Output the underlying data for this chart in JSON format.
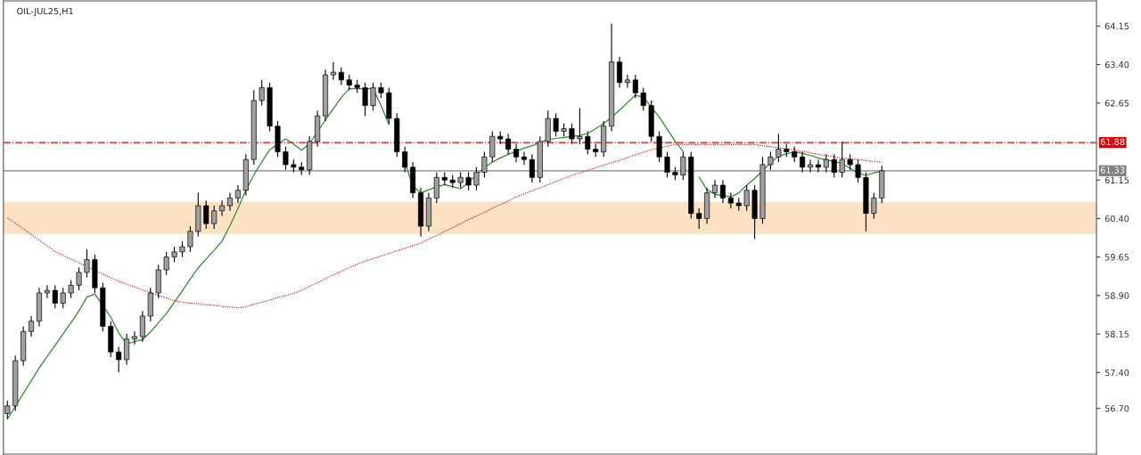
{
  "chart_data": {
    "type": "candlestick",
    "title": "OIL-JUL25,H1",
    "categories": [
      null,
      null,
      null,
      null,
      null,
      null,
      null,
      null,
      null,
      null,
      null,
      null,
      null,
      null,
      null,
      null,
      null,
      null,
      null,
      null,
      null,
      null,
      null,
      null,
      null,
      null,
      null,
      null,
      null,
      null,
      null,
      null,
      null,
      null,
      null,
      null,
      null,
      null,
      null,
      null,
      null,
      null,
      null,
      null,
      null,
      null,
      null,
      null,
      null,
      null,
      null,
      null,
      null,
      null,
      null,
      null,
      null,
      null,
      null,
      null,
      null,
      null,
      null,
      null,
      null,
      null,
      null,
      null,
      null,
      null,
      null,
      null,
      null,
      null,
      null,
      null,
      null,
      null,
      null,
      null,
      null,
      null,
      null,
      null,
      null,
      null,
      null,
      null,
      null,
      null,
      null,
      null,
      null,
      null,
      null,
      null,
      null,
      null,
      null,
      null,
      null,
      null,
      null,
      null,
      null,
      null,
      null,
      null,
      null,
      null,
      null
    ],
    "ohlc": [
      [
        56.6,
        56.85,
        56.5,
        56.75
      ],
      [
        56.75,
        57.73,
        56.65,
        57.63
      ],
      [
        57.63,
        58.3,
        57.53,
        58.2
      ],
      [
        58.2,
        58.5,
        58.1,
        58.4
      ],
      [
        58.4,
        59.05,
        58.3,
        58.95
      ],
      [
        58.95,
        59.1,
        58.85,
        59.0
      ],
      [
        59.0,
        59.1,
        58.65,
        58.75
      ],
      [
        58.75,
        59.05,
        58.65,
        58.95
      ],
      [
        58.95,
        59.2,
        58.85,
        59.1
      ],
      [
        59.1,
        59.45,
        59.0,
        59.35
      ],
      [
        59.35,
        59.8,
        59.25,
        59.6
      ],
      [
        59.6,
        59.7,
        58.95,
        59.05
      ],
      [
        59.05,
        59.15,
        58.2,
        58.3
      ],
      [
        58.3,
        58.4,
        57.7,
        57.8
      ],
      [
        57.8,
        57.9,
        57.4,
        57.65
      ],
      [
        57.65,
        58.15,
        57.55,
        58.05
      ],
      [
        58.05,
        58.2,
        57.95,
        58.1
      ],
      [
        58.1,
        58.6,
        58.0,
        58.5
      ],
      [
        58.5,
        59.05,
        58.4,
        58.95
      ],
      [
        58.95,
        59.5,
        58.85,
        59.4
      ],
      [
        59.4,
        59.75,
        59.3,
        59.65
      ],
      [
        59.65,
        59.85,
        59.55,
        59.75
      ],
      [
        59.75,
        59.95,
        59.65,
        59.85
      ],
      [
        59.85,
        60.25,
        59.75,
        60.15
      ],
      [
        60.15,
        60.9,
        60.05,
        60.65
      ],
      [
        60.65,
        60.75,
        60.2,
        60.3
      ],
      [
        60.3,
        60.65,
        60.2,
        60.55
      ],
      [
        60.55,
        60.75,
        60.45,
        60.65
      ],
      [
        60.65,
        60.9,
        60.55,
        60.8
      ],
      [
        60.8,
        61.05,
        60.7,
        60.95
      ],
      [
        60.95,
        61.65,
        60.85,
        61.55
      ],
      [
        61.55,
        62.9,
        61.45,
        62.7
      ],
      [
        62.7,
        63.1,
        62.6,
        62.95
      ],
      [
        62.95,
        63.05,
        62.1,
        62.2
      ],
      [
        62.2,
        62.3,
        61.6,
        61.7
      ],
      [
        61.7,
        61.8,
        61.35,
        61.45
      ],
      [
        61.45,
        61.55,
        61.3,
        61.4
      ],
      [
        61.4,
        61.5,
        61.25,
        61.35
      ],
      [
        61.35,
        62.0,
        61.25,
        61.9
      ],
      [
        61.9,
        62.5,
        61.8,
        62.4
      ],
      [
        62.4,
        63.3,
        62.3,
        63.2
      ],
      [
        63.2,
        63.45,
        63.1,
        63.25
      ],
      [
        63.25,
        63.35,
        63.0,
        63.1
      ],
      [
        63.1,
        63.2,
        62.9,
        63.0
      ],
      [
        63.0,
        63.1,
        62.85,
        62.95
      ],
      [
        62.95,
        63.05,
        62.4,
        62.6
      ],
      [
        62.6,
        63.05,
        62.5,
        62.95
      ],
      [
        62.95,
        63.05,
        62.75,
        62.85
      ],
      [
        62.85,
        62.95,
        62.25,
        62.35
      ],
      [
        62.35,
        62.45,
        61.6,
        61.7
      ],
      [
        61.7,
        61.8,
        61.3,
        61.4
      ],
      [
        61.4,
        61.5,
        60.8,
        60.9
      ],
      [
        60.9,
        61.0,
        60.05,
        60.25
      ],
      [
        60.25,
        60.9,
        60.15,
        60.8
      ],
      [
        60.8,
        61.3,
        60.7,
        61.2
      ],
      [
        61.2,
        61.3,
        61.05,
        61.15
      ],
      [
        61.15,
        61.25,
        61.0,
        61.1
      ],
      [
        61.1,
        61.3,
        61.0,
        61.2
      ],
      [
        61.2,
        61.3,
        60.95,
        61.05
      ],
      [
        61.05,
        61.4,
        60.95,
        61.3
      ],
      [
        61.3,
        61.7,
        61.2,
        61.6
      ],
      [
        61.6,
        62.1,
        61.5,
        62.0
      ],
      [
        62.0,
        62.1,
        61.85,
        61.95
      ],
      [
        61.95,
        62.05,
        61.65,
        61.75
      ],
      [
        61.75,
        61.85,
        61.5,
        61.6
      ],
      [
        61.6,
        61.7,
        61.45,
        61.55
      ],
      [
        61.55,
        61.65,
        61.1,
        61.2
      ],
      [
        61.2,
        62.0,
        61.1,
        61.9
      ],
      [
        61.9,
        62.5,
        61.8,
        62.35
      ],
      [
        62.35,
        62.45,
        62.0,
        62.1
      ],
      [
        62.1,
        62.25,
        62.0,
        62.15
      ],
      [
        62.15,
        62.25,
        61.85,
        61.95
      ],
      [
        61.95,
        62.55,
        61.85,
        62.0
      ],
      [
        62.0,
        62.1,
        61.65,
        61.75
      ],
      [
        61.75,
        61.85,
        61.6,
        61.7
      ],
      [
        61.7,
        62.3,
        61.6,
        62.2
      ],
      [
        62.2,
        64.2,
        62.1,
        63.45
      ],
      [
        63.45,
        63.55,
        62.95,
        63.05
      ],
      [
        63.05,
        63.2,
        62.95,
        63.1
      ],
      [
        63.1,
        63.2,
        62.75,
        62.85
      ],
      [
        62.85,
        62.95,
        62.5,
        62.6
      ],
      [
        62.6,
        62.7,
        61.9,
        62.0
      ],
      [
        62.0,
        62.1,
        61.5,
        61.6
      ],
      [
        61.6,
        61.7,
        61.2,
        61.3
      ],
      [
        61.3,
        61.4,
        61.15,
        61.25
      ],
      [
        61.25,
        61.7,
        61.15,
        61.6
      ],
      [
        61.6,
        61.7,
        60.4,
        60.5
      ],
      [
        60.5,
        60.6,
        60.2,
        60.4
      ],
      [
        60.4,
        61.0,
        60.3,
        60.9
      ],
      [
        60.9,
        61.15,
        60.8,
        61.05
      ],
      [
        61.05,
        61.15,
        60.7,
        60.8
      ],
      [
        60.8,
        60.9,
        60.6,
        60.7
      ],
      [
        60.7,
        60.8,
        60.55,
        60.65
      ],
      [
        60.65,
        61.05,
        60.55,
        60.95
      ],
      [
        60.95,
        61.05,
        60.0,
        60.4
      ],
      [
        60.4,
        61.6,
        60.3,
        61.45
      ],
      [
        61.45,
        61.7,
        61.35,
        61.6
      ],
      [
        61.6,
        62.05,
        61.5,
        61.75
      ],
      [
        61.75,
        61.85,
        61.6,
        61.7
      ],
      [
        61.7,
        61.8,
        61.5,
        61.6
      ],
      [
        61.6,
        61.7,
        61.3,
        61.4
      ],
      [
        61.4,
        61.55,
        61.3,
        61.45
      ],
      [
        61.45,
        61.55,
        61.3,
        61.4
      ],
      [
        61.4,
        61.65,
        61.3,
        61.55
      ],
      [
        61.55,
        61.65,
        61.2,
        61.3
      ],
      [
        61.3,
        61.9,
        61.2,
        61.55
      ],
      [
        61.55,
        61.65,
        61.35,
        61.45
      ],
      [
        61.45,
        61.55,
        61.1,
        61.2
      ],
      [
        61.2,
        61.3,
        60.15,
        60.5
      ],
      [
        60.5,
        60.9,
        60.4,
        60.8
      ],
      [
        60.8,
        61.43,
        60.7,
        61.33
      ]
    ],
    "colors": [
      "#a0a0a0",
      "#a0a0a0",
      "#a0a0a0",
      "#a0a0a0",
      "#a0a0a0",
      "#a0a0a0",
      "#000000",
      "#a0a0a0",
      "#a0a0a0",
      "#a0a0a0",
      "#a0a0a0",
      "#000000",
      "#000000",
      "#000000",
      "#000000",
      "#a0a0a0",
      "#a0a0a0",
      "#a0a0a0",
      "#a0a0a0",
      "#a0a0a0",
      "#a0a0a0",
      "#a0a0a0",
      "#a0a0a0",
      "#a0a0a0",
      "#a0a0a0",
      "#000000",
      "#a0a0a0",
      "#a0a0a0",
      "#a0a0a0",
      "#a0a0a0",
      "#a0a0a0",
      "#a0a0a0",
      "#a0a0a0",
      "#000000",
      "#000000",
      "#000000",
      "#000000",
      "#000000",
      "#a0a0a0",
      "#a0a0a0",
      "#a0a0a0",
      "#a0a0a0",
      "#000000",
      "#000000",
      "#000000",
      "#000000",
      "#a0a0a0",
      "#000000",
      "#000000",
      "#000000",
      "#000000",
      "#000000",
      "#000000",
      "#a0a0a0",
      "#a0a0a0",
      "#000000",
      "#000000",
      "#a0a0a0",
      "#000000",
      "#a0a0a0",
      "#a0a0a0",
      "#a0a0a0",
      "#000000",
      "#000000",
      "#000000",
      "#000000",
      "#000000",
      "#a0a0a0",
      "#a0a0a0",
      "#000000",
      "#a0a0a0",
      "#000000",
      "#a0a0a0",
      "#000000",
      "#000000",
      "#a0a0a0",
      "#a0a0a0",
      "#000000",
      "#a0a0a0",
      "#000000",
      "#000000",
      "#000000",
      "#000000",
      "#000000",
      "#000000",
      "#a0a0a0",
      "#000000",
      "#000000",
      "#a0a0a0",
      "#a0a0a0",
      "#000000",
      "#000000",
      "#000000",
      "#a0a0a0",
      "#000000",
      "#a0a0a0",
      "#a0a0a0",
      "#a0a0a0",
      "#000000",
      "#000000",
      "#000000",
      "#a0a0a0",
      "#000000",
      "#a0a0a0",
      "#000000",
      "#a0a0a0",
      "#000000",
      "#000000",
      "#000000",
      "#a0a0a0",
      "#a0a0a0"
    ],
    "series": [
      {
        "type": "line",
        "color": "#2e8b2e",
        "line_style": "solid",
        "values": [
          56.49,
          56.74,
          56.99,
          57.24,
          57.49,
          57.71,
          57.93,
          58.15,
          58.37,
          58.6,
          58.87,
          58.93,
          58.71,
          58.48,
          58.17,
          57.96,
          58.0,
          58.04,
          58.19,
          58.37,
          58.55,
          58.77,
          58.99,
          59.22,
          59.44,
          59.61,
          59.78,
          59.96,
          60.26,
          60.6,
          60.95,
          61.25,
          61.5,
          61.74,
          61.85,
          61.95,
          61.85,
          61.73,
          61.86,
          62.09,
          62.32,
          62.54,
          62.76,
          62.93,
          62.93,
          62.93,
          62.93,
          62.6,
          62.23,
          null,
          61.5,
          61.03,
          60.9,
          60.96,
          61.02,
          61.06,
          61.02,
          60.98,
          61.1,
          61.25,
          61.39,
          61.5,
          61.58,
          61.65,
          61.71,
          61.77,
          61.82,
          61.88,
          61.94,
          61.96,
          61.98,
          62.0,
          62.02,
          62.06,
          62.15,
          62.25,
          62.37,
          62.51,
          62.66,
          62.8,
          62.77,
          62.57,
          62.38,
          62.14,
          61.9,
          61.71,
          null,
          61.21,
          60.96,
          60.87,
          60.85,
          60.82,
          60.9,
          61.05,
          61.18,
          61.33,
          61.48,
          61.62,
          61.66,
          61.7,
          61.67,
          61.63,
          61.58,
          61.54,
          61.51,
          61.47,
          61.38,
          61.29,
          61.24,
          61.29,
          61.32
        ]
      },
      {
        "type": "line",
        "color": "#d03030",
        "line_style": "dotted",
        "values": [
          60.41,
          60.31,
          60.2,
          60.09,
          59.98,
          59.87,
          59.76,
          59.68,
          59.61,
          59.54,
          59.46,
          59.39,
          59.32,
          59.25,
          59.18,
          59.12,
          59.07,
          59.01,
          58.96,
          58.9,
          58.85,
          58.8,
          58.77,
          58.75,
          58.74,
          58.72,
          58.71,
          58.69,
          58.68,
          58.66,
          58.68,
          58.73,
          58.77,
          58.81,
          58.86,
          58.9,
          58.94,
          59.0,
          59.08,
          59.15,
          59.23,
          59.3,
          59.37,
          59.44,
          59.51,
          59.57,
          59.62,
          59.67,
          59.72,
          59.77,
          59.82,
          59.87,
          59.92,
          60.0,
          60.07,
          60.15,
          60.22,
          60.3,
          60.38,
          60.45,
          60.52,
          60.6,
          60.67,
          60.74,
          60.82,
          60.88,
          60.94,
          61.0,
          61.06,
          61.12,
          61.18,
          61.24,
          61.29,
          61.34,
          61.39,
          61.44,
          61.49,
          61.53,
          61.59,
          61.64,
          61.69,
          61.74,
          61.77,
          61.81,
          61.84,
          61.84,
          61.84,
          61.84,
          61.84,
          61.84,
          61.84,
          61.84,
          61.84,
          61.84,
          61.84,
          61.82,
          61.8,
          61.78,
          61.76,
          61.74,
          61.71,
          61.68,
          61.65,
          61.63,
          61.6,
          61.58,
          61.56,
          61.55,
          61.53,
          61.51,
          61.5
        ]
      }
    ],
    "ylim": [
      55.81,
      64.64
    ],
    "yticks": [
      {
        "value": 56.7,
        "label": "56.70"
      },
      {
        "value": 57.4,
        "label": "57.40"
      },
      58.15,
      {
        "value": 58.9,
        "label": "58.90"
      },
      59.65,
      {
        "value": 60.4,
        "label": "60.40"
      },
      61.15,
      62.65,
      {
        "value": 63.4,
        "label": "63.40"
      },
      64.15
    ],
    "ref_lines": [
      {
        "axis": "y",
        "value": 61.88,
        "label": "61.88",
        "color": "#e00000",
        "line_style": "dashdot"
      },
      {
        "axis": "y",
        "value": 61.33,
        "label": "61.33",
        "color": "#808080",
        "line_style": "solid"
      }
    ],
    "bands": [
      {
        "axis": "y",
        "from": 60.1,
        "to": 60.73,
        "color": "#fde1c4"
      }
    ],
    "tick_labels": "y"
  }
}
